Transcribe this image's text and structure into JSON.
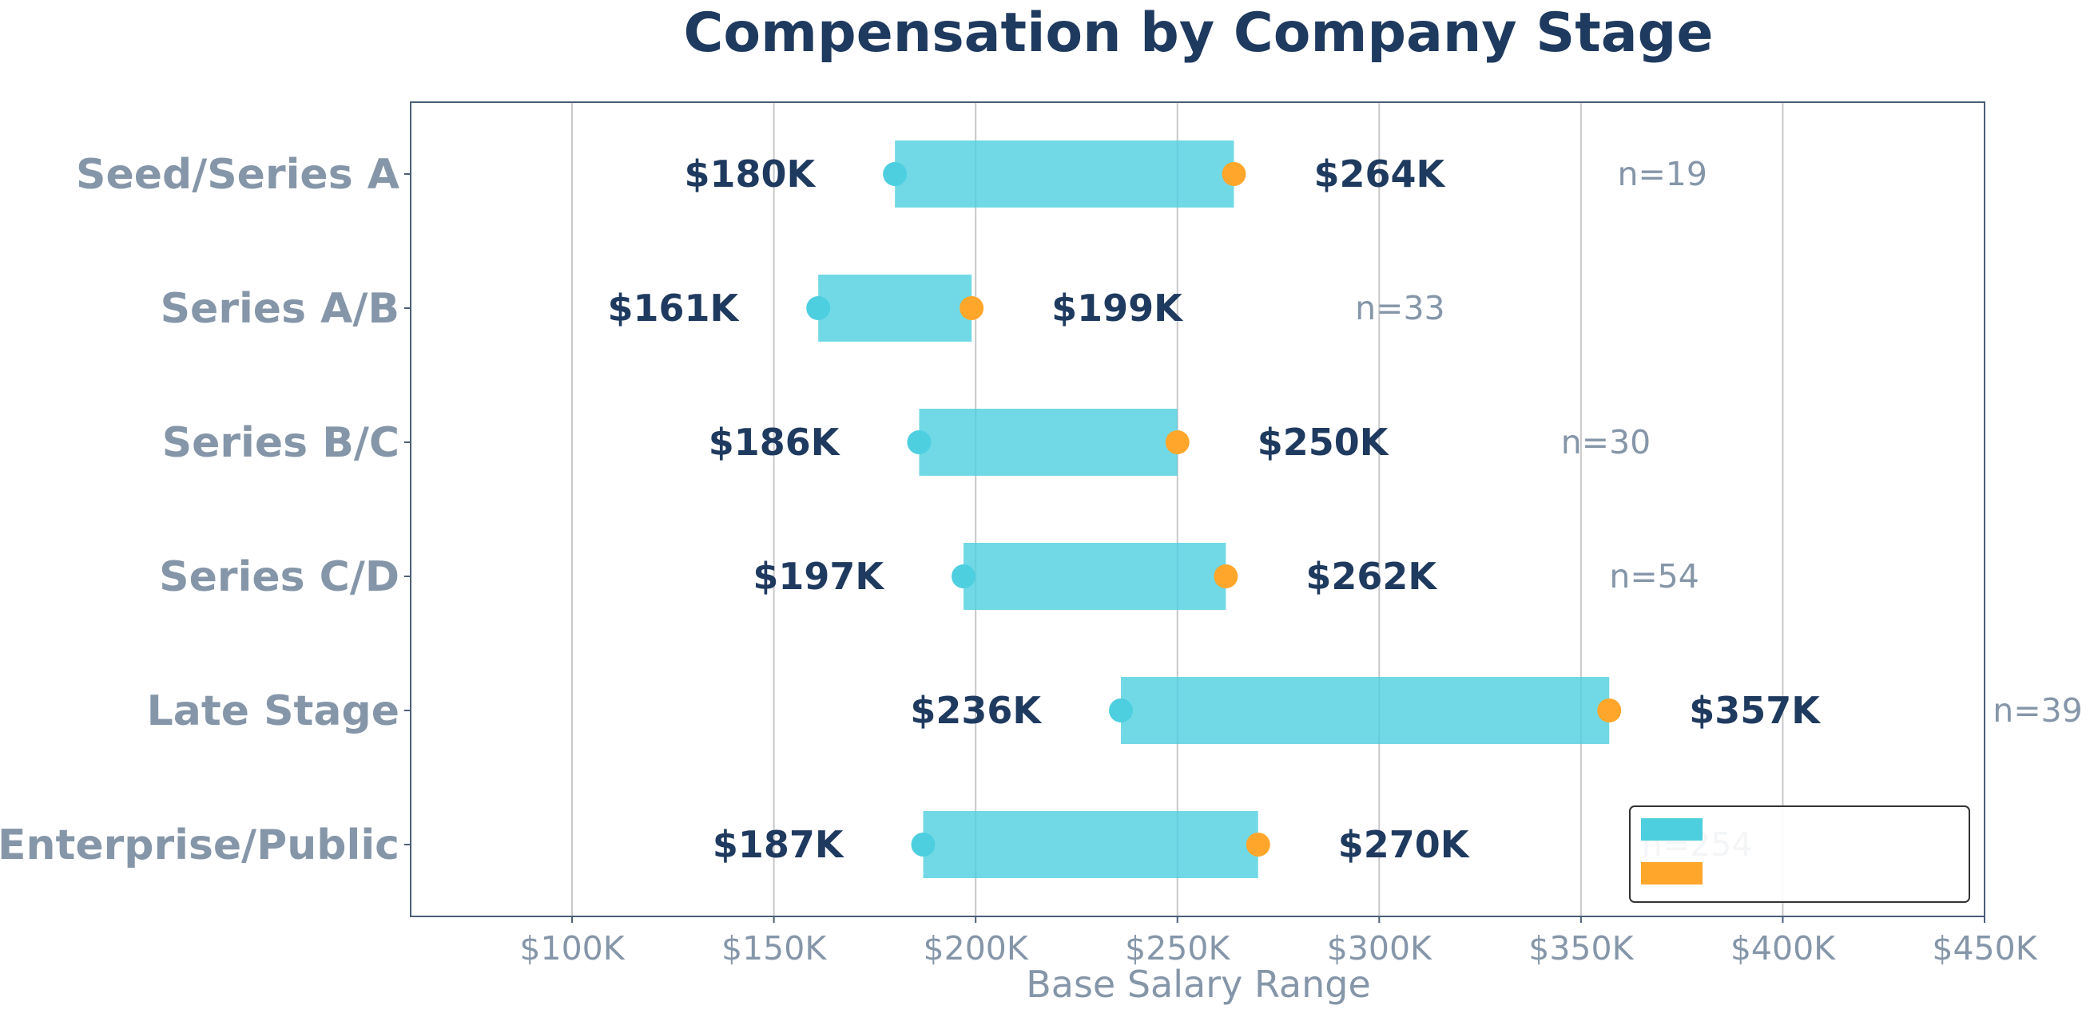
{
  "chart_data": {
    "type": "bar",
    "subtype": "range-dumbbell",
    "title": "Compensation by Company Stage",
    "xlabel": "Base Salary Range",
    "ylabel": "",
    "xlim": [
      60,
      450
    ],
    "x_ticks": [
      {
        "value": 100,
        "label": "$100K"
      },
      {
        "value": 150,
        "label": "$150K"
      },
      {
        "value": 200,
        "label": "$200K"
      },
      {
        "value": 250,
        "label": "$250K"
      },
      {
        "value": 300,
        "label": "$300K"
      },
      {
        "value": 350,
        "label": "$350K"
      },
      {
        "value": 400,
        "label": "$400K"
      },
      {
        "value": 450,
        "label": "$450K"
      }
    ],
    "grid": "vertical",
    "categories": [
      "Seed/Series A",
      "Series A/B",
      "Series B/C",
      "Series C/D",
      "Late Stage",
      "Enterprise/Public"
    ],
    "series": [
      {
        "values": [
          180,
          161,
          186,
          197,
          236,
          187
        ],
        "labels": [
          "$180K",
          "$161K",
          "$186K",
          "$197K",
          "$236K",
          "$187K"
        ]
      },
      {
        "values": [
          264,
          199,
          250,
          262,
          357,
          270
        ],
        "labels": [
          "$264K",
          "$199K",
          "$250K",
          "$262K",
          "$357K",
          "$270K"
        ]
      }
    ],
    "counts": [
      "n=19",
      "n=33",
      "n=30",
      "n=54",
      "n=39",
      "n=254"
    ],
    "legend": {
      "placement": "lower right",
      "entries": [
        "",
        ""
      ]
    },
    "colors": {
      "bar": "#4dcfe0",
      "low_dot": "#4dcfe0",
      "high_dot": "#ffa62b",
      "title": "#1f3a5f",
      "value_label": "#1f3a5f",
      "muted": "#8596a8",
      "axis": "#4a5f78",
      "grid": "#c8c8c8"
    }
  }
}
